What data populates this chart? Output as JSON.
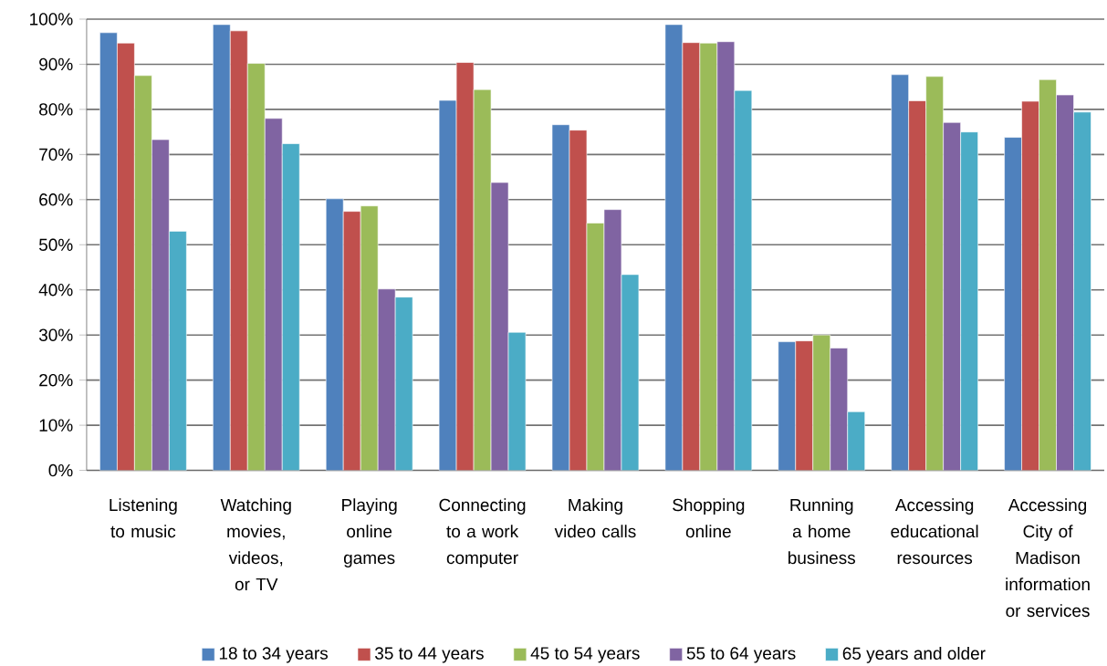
{
  "chart_data": {
    "type": "bar",
    "categories": [
      "Listening to music",
      "Watching movies, videos, or TV",
      "Playing online games",
      "Connecting to a work computer",
      "Making video calls",
      "Shopping online",
      "Running a home business",
      "Accessing educational resources",
      "Accessing City of Madison information or services"
    ],
    "series": [
      {
        "name": "18 to 34 years",
        "color": "#4f81bd",
        "values": [
          97.0,
          98.8,
          60.2,
          82.0,
          76.6,
          98.8,
          28.5,
          87.7,
          73.8
        ]
      },
      {
        "name": "35 to 44 years",
        "color": "#c0504d",
        "values": [
          94.7,
          97.4,
          57.4,
          90.4,
          75.4,
          94.8,
          28.7,
          81.9,
          81.8
        ]
      },
      {
        "name": "45 to 54 years",
        "color": "#9bbb59",
        "values": [
          87.5,
          90.2,
          58.6,
          84.4,
          54.8,
          94.7,
          30.0,
          87.3,
          86.6
        ]
      },
      {
        "name": "55 to 64 years",
        "color": "#8064a2",
        "values": [
          73.3,
          78.0,
          40.2,
          63.8,
          57.8,
          95.0,
          27.1,
          77.1,
          83.2
        ]
      },
      {
        "name": "65 years and older",
        "color": "#4bacc6",
        "values": [
          53.0,
          72.4,
          38.4,
          30.6,
          43.4,
          84.2,
          13.0,
          75.0,
          79.4
        ]
      }
    ],
    "ylim": [
      0,
      100
    ],
    "yticks": [
      {
        "value": 0,
        "label": "0%"
      },
      {
        "value": 10,
        "label": "10%"
      },
      {
        "value": 20,
        "label": "20%"
      },
      {
        "value": 30,
        "label": "30%"
      },
      {
        "value": 40,
        "label": "40%"
      },
      {
        "value": 50,
        "label": "50%"
      },
      {
        "value": 60,
        "label": "60%"
      },
      {
        "value": 70,
        "label": "70%"
      },
      {
        "value": 80,
        "label": "80%"
      },
      {
        "value": 90,
        "label": "90%"
      },
      {
        "value": 100,
        "label": "100%"
      }
    ],
    "grid": "y",
    "legend": "bottom"
  }
}
